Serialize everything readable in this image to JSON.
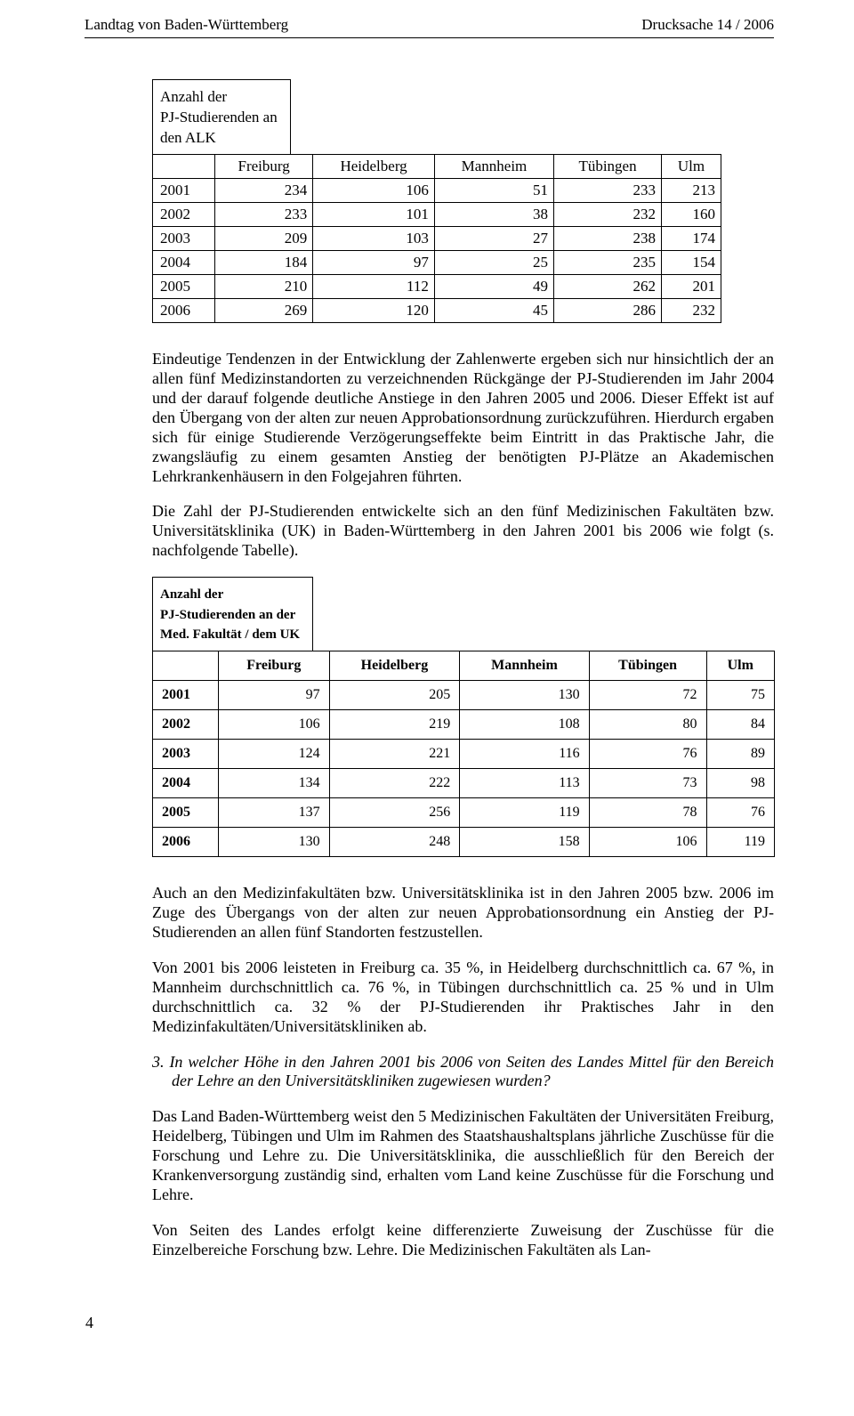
{
  "header": {
    "left": "Landtag von Baden-Württemberg",
    "right": "Drucksache 14 / 2006"
  },
  "table1": {
    "title_l1": "Anzahl der",
    "title_l2": "PJ-Studierenden an",
    "title_l3": "den ALK",
    "columns": [
      "Freiburg",
      "Heidelberg",
      "Mannheim",
      "Tübingen",
      "Ulm"
    ],
    "rows": [
      {
        "year": "2001",
        "v": [
          "234",
          "106",
          "51",
          "233",
          "213"
        ]
      },
      {
        "year": "2002",
        "v": [
          "233",
          "101",
          "38",
          "232",
          "160"
        ]
      },
      {
        "year": "2003",
        "v": [
          "209",
          "103",
          "27",
          "238",
          "174"
        ]
      },
      {
        "year": "2004",
        "v": [
          "184",
          "97",
          "25",
          "235",
          "154"
        ]
      },
      {
        "year": "2005",
        "v": [
          "210",
          "112",
          "49",
          "262",
          "201"
        ]
      },
      {
        "year": "2006",
        "v": [
          "269",
          "120",
          "45",
          "286",
          "232"
        ]
      }
    ]
  },
  "para1": "Eindeutige Tendenzen in der Entwicklung der Zahlenwerte ergeben sich nur hinsichtlich der an allen fünf Medizinstandorten zu verzeichnenden Rückgänge der PJ-Studierenden im Jahr 2004 und der darauf folgende deutliche Anstiege in den Jahren 2005 und 2006. Dieser Effekt ist auf den Übergang von der alten zur neuen Approbationsordnung zurückzuführen. Hierdurch ergaben sich für einige Studierende Verzögerungseffekte beim Eintritt in das Praktische Jahr, die zwangsläufig zu einem gesamten Anstieg der benötigten PJ-Plätze an Akademischen Lehrkrankenhäusern in den Folgejahren führten.",
  "para2": "Die Zahl der PJ-Studierenden entwickelte sich an den fünf Medizinischen Fakultäten bzw. Universitätsklinika (UK) in Baden-Württemberg in den Jahren 2001 bis 2006 wie folgt (s. nachfolgende Tabelle).",
  "table2": {
    "title_l1": "Anzahl der",
    "title_l2": "PJ-Studierenden an der",
    "title_l3": "Med. Fakultät / dem UK",
    "columns": [
      "Freiburg",
      "Heidelberg",
      "Mannheim",
      "Tübingen",
      "Ulm"
    ],
    "rows": [
      {
        "year": "2001",
        "v": [
          "97",
          "205",
          "130",
          "72",
          "75"
        ]
      },
      {
        "year": "2002",
        "v": [
          "106",
          "219",
          "108",
          "80",
          "84"
        ]
      },
      {
        "year": "2003",
        "v": [
          "124",
          "221",
          "116",
          "76",
          "89"
        ]
      },
      {
        "year": "2004",
        "v": [
          "134",
          "222",
          "113",
          "73",
          "98"
        ]
      },
      {
        "year": "2005",
        "v": [
          "137",
          "256",
          "119",
          "78",
          "76"
        ]
      },
      {
        "year": "2006",
        "v": [
          "130",
          "248",
          "158",
          "106",
          "119"
        ]
      }
    ]
  },
  "para3": "Auch an den Medizinfakultäten bzw. Universitätsklinika ist in den Jahren 2005 bzw. 2006 im Zuge des Übergangs von der alten zur neuen Approbationsordnung ein Anstieg der PJ-Studierenden an allen fünf Standorten festzustellen.",
  "para4": "Von 2001 bis 2006 leisteten in Freiburg ca. 35 %, in Heidelberg durchschnittlich ca. 67 %, in Mannheim durchschnittlich ca. 76 %, in Tübingen durchschnittlich ca. 25 % und in Ulm durchschnittlich ca. 32 % der PJ-Studierenden ihr Praktisches Jahr in den Medizinfakultäten/Universitätskliniken ab.",
  "question": "3. In welcher Höhe in den Jahren 2001 bis 2006 von Seiten des Landes Mittel für den Bereich der Lehre an den Universitätskliniken zugewiesen wurden?",
  "para5": "Das Land Baden-Württemberg weist den 5 Medizinischen Fakultäten der Universitäten Freiburg, Heidelberg, Tübingen und Ulm im Rahmen des Staatshaushaltsplans jährliche Zuschüsse für die Forschung und Lehre zu. Die Universitätsklinika, die ausschließlich für den Bereich der Krankenversorgung zuständig sind, erhalten vom Land keine Zuschüsse für die Forschung und Lehre.",
  "para6": "Von Seiten des Landes erfolgt keine differenzierte Zuweisung der Zuschüsse für die Einzelbereiche Forschung bzw. Lehre. Die Medizinischen Fakultäten als Lan-",
  "pagenum": "4"
}
